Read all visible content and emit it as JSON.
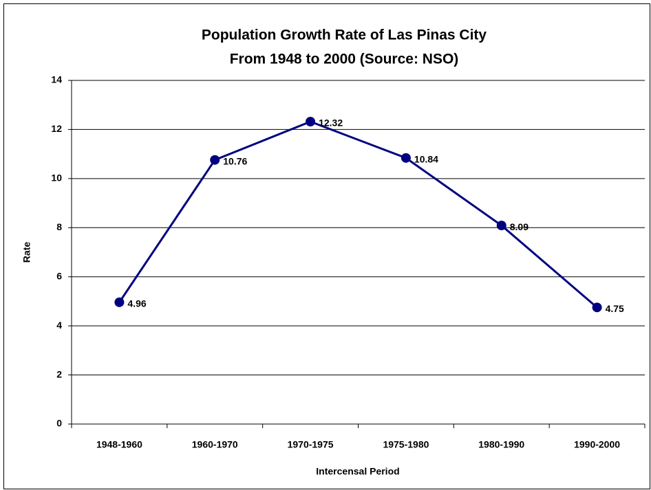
{
  "chart_data": {
    "type": "line",
    "title": [
      "Population Growth Rate of Las Pinas City",
      "From 1948 to 2000 (Source: NSO)"
    ],
    "x_label": "Intercensal Period",
    "y_label": "Rate",
    "categories": [
      "1948-1960",
      "1960-1970",
      "1970-1975",
      "1975-1980",
      "1980-1990",
      "1990-2000"
    ],
    "series": [
      {
        "name": "Rate",
        "color": "#000080",
        "values": [
          4.96,
          10.76,
          12.32,
          10.84,
          8.09,
          4.75
        ]
      }
    ],
    "ylim": [
      0,
      14
    ],
    "yticks": [
      0,
      2,
      4,
      6,
      8,
      10,
      12,
      14
    ],
    "grid": true,
    "data_labels": true
  }
}
